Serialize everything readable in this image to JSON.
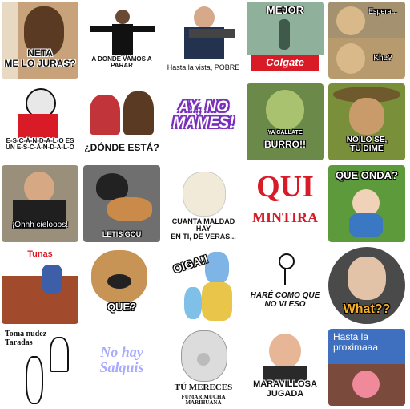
{
  "stickers": [
    {
      "caption": "NETA\nME LO JURAS?"
    },
    {
      "caption": "A DONDE VAMOS A PARAR"
    },
    {
      "caption": "Hasta la vista, POBRE"
    },
    {
      "caption": "MEJOR",
      "brand": "Colgate"
    },
    {
      "caption": "Espera...",
      "caption2": "Khe?"
    },
    {
      "caption": "E-S-C-Á-N-D-A-L-O ES\nUN E-S-C-Á-N-D-A-L-O"
    },
    {
      "caption": "¿DÓNDE ESTÁ?"
    },
    {
      "caption": "AY, NO\nMAMES!"
    },
    {
      "caption": "YA CALLATE",
      "caption2": "BURRO!!"
    },
    {
      "caption": "NO LO SE,\nTU DIME"
    },
    {
      "caption": "¡Ohhh cielooos!"
    },
    {
      "caption": "LETIS GOU"
    },
    {
      "caption": "CUANTA MALDAD HAY\nEN TI, DE VERAS..."
    },
    {
      "caption": "QUI",
      "caption2": "MINTIRA"
    },
    {
      "caption": "QUE ONDA?"
    },
    {
      "caption": "Tunas"
    },
    {
      "caption": "QUE?"
    },
    {
      "caption": "OIGA!!"
    },
    {
      "caption": "HARÉ COMO QUE\nNO VI ESO"
    },
    {
      "caption": "What??"
    },
    {
      "caption": "Toma nudez\nTaradas"
    },
    {
      "caption": "No hay\nSalquis"
    },
    {
      "caption": "TÚ MERECES",
      "caption2": "FUMAR MUCHA MARIHUANA"
    },
    {
      "caption": "MARAVILLOSA\nJUGADA"
    },
    {
      "caption": "Hasta la\nproximaaa"
    }
  ],
  "colors": {
    "purple": "#7b2fb8",
    "red": "#d81b27",
    "blue": "#2b5fd9"
  }
}
